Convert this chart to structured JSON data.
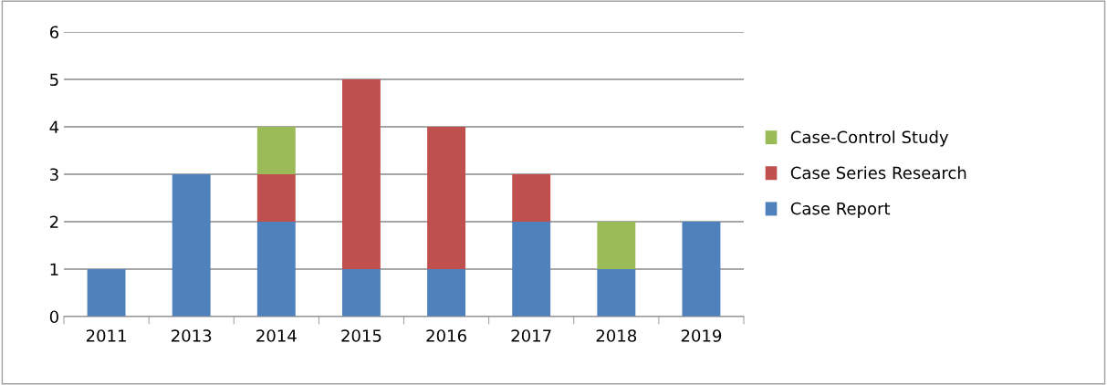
{
  "chart_data": {
    "type": "bar",
    "stacked": true,
    "categories": [
      "2011",
      "2013",
      "2014",
      "2015",
      "2016",
      "2017",
      "2018",
      "2019"
    ],
    "series": [
      {
        "name": "Case Report",
        "color": "#4f81bd",
        "values": [
          1,
          3,
          2,
          1,
          1,
          2,
          1,
          2
        ]
      },
      {
        "name": "Case Series Research",
        "color": "#c0504d",
        "values": [
          0,
          0,
          1,
          4,
          3,
          1,
          0,
          0
        ]
      },
      {
        "name": "Case-Control Study",
        "color": "#9bbb59",
        "values": [
          0,
          0,
          1,
          0,
          0,
          0,
          1,
          0
        ]
      }
    ],
    "ylim": [
      0,
      6
    ],
    "yticks": [
      0,
      1,
      2,
      3,
      4,
      5,
      6
    ],
    "grid": "y",
    "legend": "right"
  }
}
